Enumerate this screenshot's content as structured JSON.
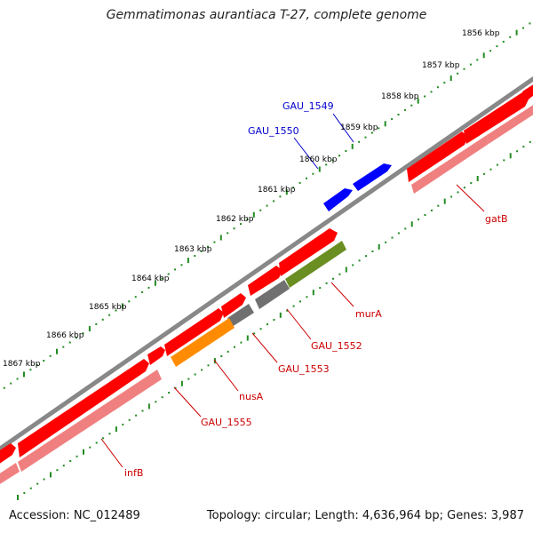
{
  "title": "Gemmatimonas aurantiaca T-27, complete genome",
  "footer": {
    "accession": "Accession: NC_012489",
    "stats": "Topology: circular; Length: 4,636,964 bp; Genes: 3,987"
  },
  "colors": {
    "forward_cds": "#ff0000",
    "reverse_cds_highlight": "#0000ff",
    "rna_pale": "#f08080",
    "orange_gene": "#ff8c00",
    "olive_gene": "#6b8e23",
    "gray_gene": "#707070",
    "backbone": "#808080",
    "tick_dots": "#228b22",
    "label_red": "#cc0000",
    "label_blue": "#0000cc"
  },
  "ticks": [
    "1856 kbp",
    "1857 kbp",
    "1858 kbp",
    "1859 kbp",
    "1860 kbp",
    "1861 kbp",
    "1862 kbp",
    "1863 kbp",
    "1864 kbp",
    "1865 kbp",
    "1866 kbp",
    "1867 kbp"
  ],
  "gene_labels": {
    "gau1549": "GAU_1549",
    "gau1550": "GAU_1550",
    "gatB": "gatB",
    "murA": "murA",
    "gau1552": "GAU_1552",
    "gau1553": "GAU_1553",
    "nusA": "nusA",
    "gau1555": "GAU_1555",
    "infB": "infB"
  }
}
